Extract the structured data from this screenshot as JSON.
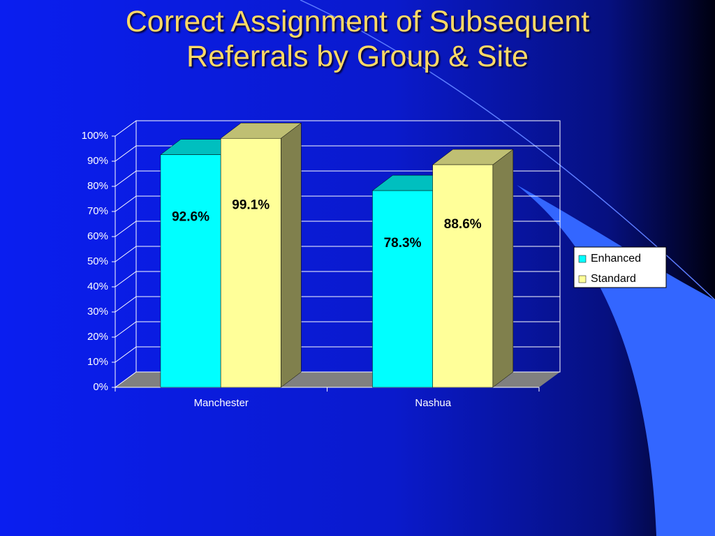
{
  "chart_data": {
    "type": "bar3d",
    "title": "Correct Assignment of Subsequent Referrals by Group & Site",
    "categories": [
      "Manchester",
      "Nashua"
    ],
    "series": [
      {
        "name": "Enhanced",
        "color": "#00ffff",
        "values": [
          92.6,
          78.3
        ],
        "value_labels": [
          "92.6%",
          "78.3%"
        ]
      },
      {
        "name": "Standard",
        "color": "#ffff99",
        "values": [
          99.1,
          88.6
        ],
        "value_labels": [
          "99.1%",
          "88.6%"
        ]
      }
    ],
    "ylim": [
      0,
      100
    ],
    "yticks": [
      {
        "value": 0,
        "label": "0%"
      },
      {
        "value": 10,
        "label": "10%"
      },
      {
        "value": 20,
        "label": "20%"
      },
      {
        "value": 30,
        "label": "30%"
      },
      {
        "value": 40,
        "label": "40%"
      },
      {
        "value": 50,
        "label": "50%"
      },
      {
        "value": 60,
        "label": "60%"
      },
      {
        "value": 70,
        "label": "70%"
      },
      {
        "value": 80,
        "label": "80%"
      },
      {
        "value": 90,
        "label": "90%"
      },
      {
        "value": 100,
        "label": "100%"
      }
    ],
    "grid": true,
    "legend": "right"
  }
}
